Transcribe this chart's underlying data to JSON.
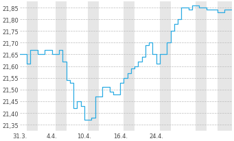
{
  "y_values": [
    21.65,
    21.65,
    21.61,
    21.67,
    21.67,
    21.65,
    21.65,
    21.67,
    21.67,
    21.65,
    21.65,
    21.67,
    21.62,
    21.54,
    21.53,
    21.42,
    21.45,
    21.43,
    21.37,
    21.37,
    21.38,
    21.47,
    21.47,
    21.51,
    21.51,
    21.49,
    21.48,
    21.48,
    21.53,
    21.55,
    21.57,
    21.59,
    21.6,
    21.62,
    21.64,
    21.69,
    21.7,
    21.65,
    21.61,
    21.65,
    21.65,
    21.7,
    21.75,
    21.78,
    21.8,
    21.85,
    21.85,
    21.84,
    21.86,
    21.86,
    21.85,
    21.85,
    21.84,
    21.84,
    21.84,
    21.83,
    21.83,
    21.84,
    21.84,
    21.84
  ],
  "yticks": [
    21.35,
    21.4,
    21.45,
    21.5,
    21.55,
    21.6,
    21.65,
    21.7,
    21.75,
    21.8,
    21.85
  ],
  "ylim": [
    21.325,
    21.875
  ],
  "xlim": [
    0,
    59
  ],
  "xtick_positions": [
    0,
    9,
    18,
    28,
    38,
    48
  ],
  "xtick_labels": [
    "31.3.",
    "4.4.",
    "10.4.",
    "16.4.",
    "24.4.",
    ""
  ],
  "line_color": "#2AABE3",
  "bg_color": "#FFFFFF",
  "stripe_color": "#E6E6E6",
  "grid_color": "#BBBBBB",
  "font_color": "#444444",
  "stripe_ranges": [
    [
      2,
      5
    ],
    [
      10,
      13
    ],
    [
      19,
      22
    ],
    [
      29,
      32
    ],
    [
      39,
      42
    ],
    [
      49,
      52
    ],
    [
      55,
      59
    ]
  ],
  "font_size": 6.0
}
